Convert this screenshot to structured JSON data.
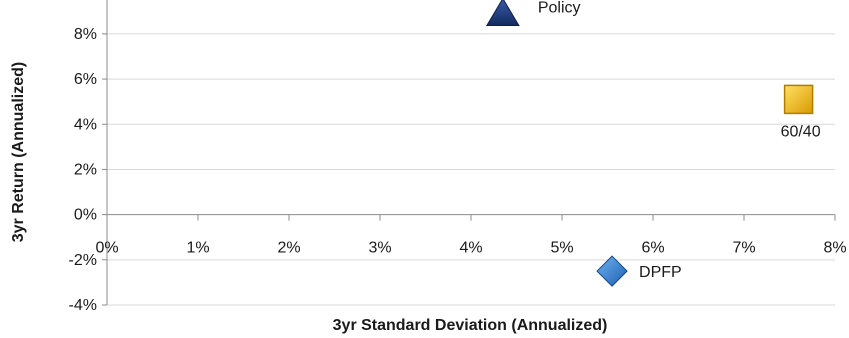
{
  "chart_data": {
    "type": "scatter",
    "xlabel": "3yr Standard Deviation (Annualized)",
    "ylabel": "3yr Return (Annualized)",
    "xlim": [
      0,
      8
    ],
    "ylim": [
      -4,
      9.5
    ],
    "x_ticks": [
      0,
      1,
      2,
      3,
      4,
      5,
      6,
      7,
      8
    ],
    "y_ticks": [
      -4,
      -2,
      0,
      2,
      4,
      6,
      8
    ],
    "x_tick_labels": [
      "0%",
      "1%",
      "2%",
      "3%",
      "4%",
      "5%",
      "6%",
      "7%",
      "8%"
    ],
    "y_tick_labels": [
      "-4%",
      "-2%",
      "0%",
      "2%",
      "4%",
      "6%",
      "8%"
    ],
    "grid": "horizontal",
    "points": [
      {
        "label": "Policy",
        "x": 4.35,
        "y": 8.9,
        "marker": "triangle",
        "color": "#1f3a7a"
      },
      {
        "label": "60/40",
        "x": 7.6,
        "y": 5.1,
        "marker": "square",
        "color": "#f2b705"
      },
      {
        "label": "DPFP",
        "x": 5.55,
        "y": -2.5,
        "marker": "diamond",
        "color": "#2e7dd1"
      }
    ]
  }
}
